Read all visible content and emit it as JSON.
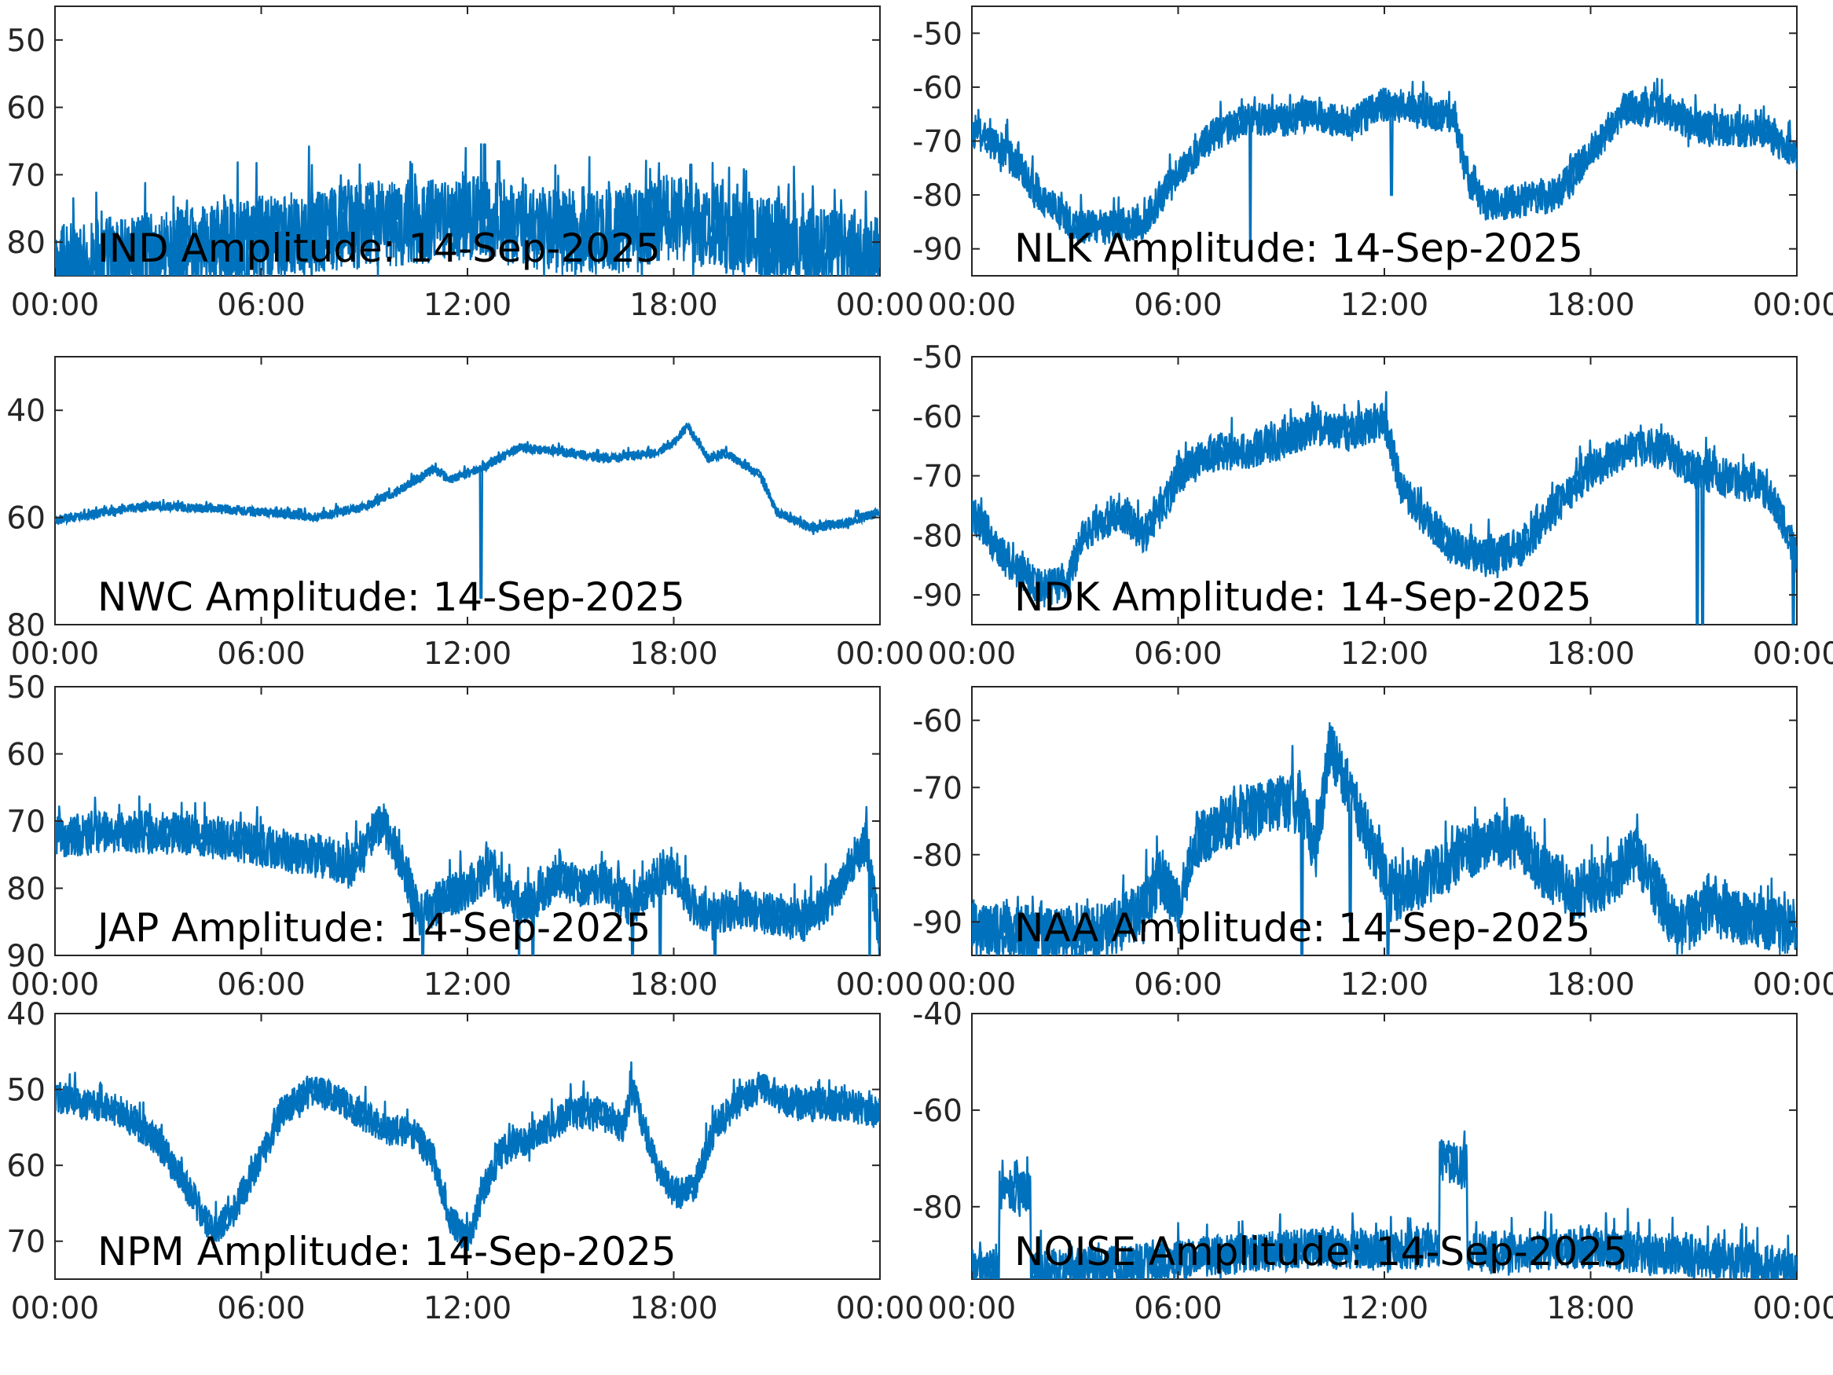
{
  "figure": {
    "accent_color": "#0072BD",
    "background": "#ffffff"
  },
  "chart_data": [
    {
      "type": "line",
      "station": "IND",
      "title": "IND Amplitude: 14-Sep-2025",
      "xticks": [
        "00:00",
        "06:00",
        "12:00",
        "18:00",
        "00:00"
      ],
      "yticks": [
        "50",
        "60",
        "70",
        "80"
      ],
      "ytick_values": [
        -50,
        -60,
        -70,
        -80
      ],
      "ylim": [
        -85,
        -45
      ],
      "xlim": [
        0,
        24
      ],
      "grid": false,
      "anchors": [
        [
          0,
          -84
        ],
        [
          2,
          -82.5
        ],
        [
          4,
          -81
        ],
        [
          6,
          -79.5
        ],
        [
          8,
          -78
        ],
        [
          10,
          -77
        ],
        [
          12,
          -76
        ],
        [
          13,
          -77
        ],
        [
          15,
          -78.5
        ],
        [
          17,
          -78
        ],
        [
          18,
          -76
        ],
        [
          20,
          -79
        ],
        [
          22,
          -80.5
        ],
        [
          24,
          -83
        ]
      ],
      "noise": 6,
      "spikes": [
        [
          12.5,
          -65.5
        ],
        [
          12.9,
          -68
        ],
        [
          18.5,
          -68.5
        ]
      ],
      "dips": []
    },
    {
      "type": "line",
      "station": "NLK",
      "title": "NLK Amplitude: 14-Sep-2025",
      "xticks": [
        "00:00",
        "06:00",
        "12:00",
        "18:00",
        "00:00"
      ],
      "yticks": [
        "-50",
        "-60",
        "-70",
        "-80",
        "-90"
      ],
      "ytick_values": [
        -50,
        -60,
        -70,
        -80,
        -90
      ],
      "ylim": [
        -95,
        -45
      ],
      "xlim": [
        0,
        24
      ],
      "grid": false,
      "anchors": [
        [
          0,
          -68
        ],
        [
          1,
          -72
        ],
        [
          2,
          -80
        ],
        [
          3,
          -86
        ],
        [
          4,
          -86
        ],
        [
          5,
          -85
        ],
        [
          6,
          -76
        ],
        [
          7,
          -69
        ],
        [
          8,
          -66
        ],
        [
          9,
          -66
        ],
        [
          10,
          -65
        ],
        [
          11,
          -67
        ],
        [
          12,
          -63
        ],
        [
          13,
          -64
        ],
        [
          14,
          -66
        ],
        [
          14.5,
          -78
        ],
        [
          15,
          -82
        ],
        [
          17,
          -80
        ],
        [
          18,
          -72
        ],
        [
          19,
          -64
        ],
        [
          20,
          -64
        ],
        [
          21,
          -67
        ],
        [
          22,
          -68
        ],
        [
          23,
          -68
        ],
        [
          24,
          -73
        ]
      ],
      "noise": 3,
      "spikes": [],
      "dips": [
        [
          8.1,
          -90
        ],
        [
          12.2,
          -80
        ]
      ]
    },
    {
      "type": "line",
      "station": "NWC",
      "title": "NWC Amplitude: 14-Sep-2025",
      "xticks": [
        "00:00",
        "06:00",
        "12:00",
        "18:00",
        "00:00"
      ],
      "yticks": [
        "40",
        "60",
        "80"
      ],
      "ytick_values": [
        -40,
        -60,
        -80
      ],
      "ylim": [
        -80,
        -30
      ],
      "xlim": [
        0,
        24
      ],
      "grid": false,
      "anchors": [
        [
          0,
          -60.5
        ],
        [
          2,
          -58.5
        ],
        [
          3,
          -57.8
        ],
        [
          5,
          -58.5
        ],
        [
          7,
          -59.5
        ],
        [
          7.5,
          -60
        ],
        [
          9,
          -58
        ],
        [
          10,
          -55
        ],
        [
          11,
          -51
        ],
        [
          11.5,
          -53
        ],
        [
          12.5,
          -50.5
        ],
        [
          13.5,
          -47
        ],
        [
          15,
          -48
        ],
        [
          16,
          -49
        ],
        [
          17.5,
          -48
        ],
        [
          18,
          -46
        ],
        [
          18.4,
          -43
        ],
        [
          19,
          -49
        ],
        [
          19.5,
          -48
        ],
        [
          20.5,
          -52
        ],
        [
          21,
          -59
        ],
        [
          22,
          -62
        ],
        [
          23,
          -61
        ],
        [
          24,
          -59
        ]
      ],
      "noise": 0.8,
      "spikes": [],
      "dips": [
        [
          12.4,
          -75
        ]
      ]
    },
    {
      "type": "line",
      "station": "NDK",
      "title": "NDK Amplitude: 14-Sep-2025",
      "xticks": [
        "00:00",
        "06:00",
        "12:00",
        "18:00",
        "00:00"
      ],
      "yticks": [
        "-50",
        "-60",
        "-70",
        "-80",
        "-90"
      ],
      "ytick_values": [
        -50,
        -60,
        -70,
        -80,
        -90
      ],
      "ylim": [
        -95,
        -50
      ],
      "xlim": [
        0,
        24
      ],
      "grid": false,
      "anchors": [
        [
          0,
          -76
        ],
        [
          1,
          -84
        ],
        [
          2,
          -89
        ],
        [
          2.8,
          -88
        ],
        [
          3.2,
          -80
        ],
        [
          3.8,
          -78
        ],
        [
          4.3,
          -76
        ],
        [
          5,
          -80
        ],
        [
          5.5,
          -76
        ],
        [
          6,
          -70
        ],
        [
          7,
          -66
        ],
        [
          8,
          -66
        ],
        [
          9,
          -64
        ],
        [
          10,
          -62
        ],
        [
          11,
          -63
        ],
        [
          12,
          -60.5
        ],
        [
          12.5,
          -72
        ],
        [
          13,
          -76
        ],
        [
          14,
          -82
        ],
        [
          15,
          -84
        ],
        [
          16,
          -82
        ],
        [
          17,
          -75
        ],
        [
          18,
          -69
        ],
        [
          19,
          -66
        ],
        [
          20,
          -65
        ],
        [
          21,
          -69
        ],
        [
          22,
          -70.5
        ],
        [
          23,
          -72
        ],
        [
          23.5,
          -76
        ],
        [
          24,
          -84
        ]
      ],
      "noise": 3,
      "spikes": [],
      "dips": [
        [
          21.1,
          -95
        ],
        [
          21.25,
          -95
        ],
        [
          23.9,
          -95
        ]
      ]
    },
    {
      "type": "line",
      "station": "JAP",
      "title": "JAP Amplitude: 14-Sep-2025",
      "xticks": [
        "00:00",
        "06:00",
        "12:00",
        "18:00",
        "00:00"
      ],
      "yticks": [
        "50",
        "60",
        "70",
        "80",
        "90"
      ],
      "ytick_values": [
        -50,
        -60,
        -70,
        -80,
        -90
      ],
      "ylim": [
        -90,
        -50
      ],
      "xlim": [
        0,
        24
      ],
      "grid": false,
      "anchors": [
        [
          0,
          -72.5
        ],
        [
          2,
          -71.5
        ],
        [
          4,
          -72
        ],
        [
          6,
          -73.5
        ],
        [
          7,
          -75
        ],
        [
          8,
          -75.5
        ],
        [
          8.6,
          -77
        ],
        [
          9,
          -74
        ],
        [
          9.5,
          -70
        ],
        [
          10,
          -75
        ],
        [
          10.6,
          -84
        ],
        [
          11.2,
          -82
        ],
        [
          12,
          -80
        ],
        [
          12.6,
          -77
        ],
        [
          13.3,
          -82
        ],
        [
          14,
          -82
        ],
        [
          14.6,
          -78
        ],
        [
          15.3,
          -80
        ],
        [
          16,
          -79
        ],
        [
          16.8,
          -83
        ],
        [
          17.5,
          -78
        ],
        [
          18,
          -78
        ],
        [
          18.5,
          -82
        ],
        [
          19,
          -84
        ],
        [
          20,
          -83
        ],
        [
          21,
          -84
        ],
        [
          21.8,
          -85
        ],
        [
          22.5,
          -82
        ],
        [
          23,
          -78
        ],
        [
          23.6,
          -73
        ],
        [
          24,
          -88
        ]
      ],
      "noise": 3,
      "spikes": [],
      "dips": [
        [
          10.7,
          -90
        ],
        [
          13.5,
          -90
        ],
        [
          13.9,
          -90
        ],
        [
          16.8,
          -90
        ],
        [
          17.6,
          -90
        ],
        [
          19.2,
          -90
        ],
        [
          23.7,
          -90
        ]
      ]
    },
    {
      "type": "line",
      "station": "NAA",
      "title": "NAA Amplitude: 14-Sep-2025",
      "xticks": [
        "00:00",
        "06:00",
        "12:00",
        "18:00",
        "00:00"
      ],
      "yticks": [
        "-60",
        "-70",
        "-80",
        "-90"
      ],
      "ytick_values": [
        -60,
        -70,
        -80,
        -90
      ],
      "ylim": [
        -95,
        -55
      ],
      "xlim": [
        0,
        24
      ],
      "grid": false,
      "anchors": [
        [
          0,
          -91
        ],
        [
          3,
          -92
        ],
        [
          4,
          -91
        ],
        [
          5,
          -88
        ],
        [
          5.5,
          -83
        ],
        [
          6,
          -88
        ],
        [
          6.5,
          -78
        ],
        [
          7.5,
          -75
        ],
        [
          8.5,
          -73
        ],
        [
          9,
          -72
        ],
        [
          9.6,
          -73
        ],
        [
          10,
          -80
        ],
        [
          10.4,
          -64
        ],
        [
          10.8,
          -68
        ],
        [
          11.3,
          -75
        ],
        [
          11.8,
          -80
        ],
        [
          12.2,
          -86
        ],
        [
          13,
          -84
        ],
        [
          14,
          -81
        ],
        [
          15,
          -78
        ],
        [
          16,
          -78
        ],
        [
          16.5,
          -82
        ],
        [
          17.5,
          -86
        ],
        [
          18.5,
          -84
        ],
        [
          19.3,
          -80
        ],
        [
          19.8,
          -84
        ],
        [
          20.5,
          -91
        ],
        [
          21.5,
          -88
        ],
        [
          23,
          -90
        ],
        [
          24,
          -91
        ]
      ],
      "noise": 4,
      "spikes": [],
      "dips": [
        [
          9.6,
          -95
        ],
        [
          11.0,
          -90
        ],
        [
          12.1,
          -95
        ]
      ]
    },
    {
      "type": "line",
      "station": "NPM",
      "title": "NPM Amplitude: 14-Sep-2025",
      "xticks": [
        "00:00",
        "06:00",
        "12:00",
        "18:00",
        "00:00"
      ],
      "yticks": [
        "40",
        "50",
        "60",
        "70"
      ],
      "ytick_values": [
        -40,
        -50,
        -60,
        -70
      ],
      "ylim": [
        -75,
        -40
      ],
      "xlim": [
        0,
        24
      ],
      "grid": false,
      "anchors": [
        [
          0,
          -51
        ],
        [
          2,
          -53
        ],
        [
          3,
          -57
        ],
        [
          4,
          -64
        ],
        [
          4.6,
          -69
        ],
        [
          5.2,
          -66
        ],
        [
          6,
          -59
        ],
        [
          6.6,
          -53
        ],
        [
          7.5,
          -50
        ],
        [
          8.5,
          -52
        ],
        [
          9.5,
          -55
        ],
        [
          10.5,
          -56
        ],
        [
          11,
          -59
        ],
        [
          11.5,
          -67
        ],
        [
          12,
          -70
        ],
        [
          12.5,
          -63
        ],
        [
          13,
          -58
        ],
        [
          14,
          -56
        ],
        [
          15,
          -53
        ],
        [
          16,
          -53
        ],
        [
          16.5,
          -55
        ],
        [
          16.8,
          -50
        ],
        [
          17.5,
          -60
        ],
        [
          18,
          -64
        ],
        [
          18.6,
          -63
        ],
        [
          19.2,
          -55
        ],
        [
          20,
          -51
        ],
        [
          20.6,
          -49.5
        ],
        [
          21.5,
          -52
        ],
        [
          22.5,
          -52
        ],
        [
          24,
          -53
        ]
      ],
      "noise": 2,
      "spikes": [],
      "dips": []
    },
    {
      "type": "line",
      "station": "NOISE",
      "title": "NOISE Amplitude: 14-Sep-2025",
      "xticks": [
        "00:00",
        "06:00",
        "12:00",
        "18:00",
        "00:00"
      ],
      "yticks": [
        "-40",
        "-60",
        "-80"
      ],
      "ytick_values": [
        -40,
        -60,
        -80
      ],
      "ylim": [
        -95,
        -40
      ],
      "xlim": [
        0,
        24
      ],
      "grid": false,
      "anchors": [
        [
          0,
          -93
        ],
        [
          0.8,
          -93
        ],
        [
          0.8,
          -77
        ],
        [
          1.7,
          -77
        ],
        [
          1.7,
          -93
        ],
        [
          4,
          -92.5
        ],
        [
          6,
          -91
        ],
        [
          8,
          -89.5
        ],
        [
          10,
          -88.5
        ],
        [
          12,
          -89
        ],
        [
          13.6,
          -88.5
        ],
        [
          13.6,
          -70
        ],
        [
          14.4,
          -72
        ],
        [
          14.4,
          -89
        ],
        [
          16,
          -89.5
        ],
        [
          18,
          -88.5
        ],
        [
          20,
          -90
        ],
        [
          22,
          -91
        ],
        [
          24,
          -93
        ]
      ],
      "noise": 4,
      "spikes": [],
      "dips": []
    }
  ]
}
